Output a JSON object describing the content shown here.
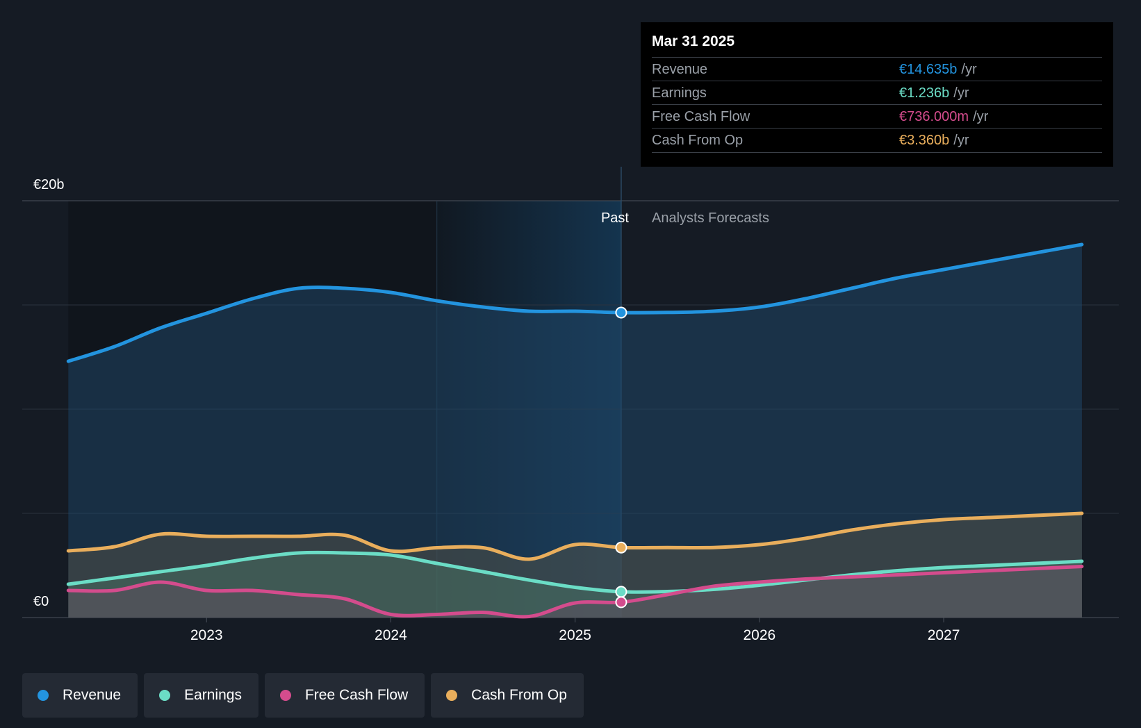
{
  "chart_data": {
    "type": "area",
    "y_unit_labels": {
      "top": "€20b",
      "bottom": "€0"
    },
    "ylim": [
      0,
      20
    ],
    "x_ticks": [
      "2023",
      "2024",
      "2025",
      "2026",
      "2027"
    ],
    "section_labels": {
      "past": "Past",
      "forecast": "Analysts Forecasts"
    },
    "divider_x": 2025.25,
    "past_start_x": 2022.25,
    "series": [
      {
        "name": "Revenue",
        "color": "#2394df",
        "x": [
          2022.25,
          2022.5,
          2022.75,
          2023,
          2023.25,
          2023.5,
          2023.75,
          2024,
          2024.25,
          2024.5,
          2024.75,
          2025,
          2025.25,
          2025.5,
          2025.75,
          2026,
          2026.25,
          2026.5,
          2026.75,
          2027,
          2027.25,
          2027.5,
          2027.75
        ],
        "y": [
          12.3,
          13.0,
          13.9,
          14.6,
          15.3,
          15.8,
          15.8,
          15.6,
          15.2,
          14.9,
          14.7,
          14.7,
          14.635,
          14.64,
          14.7,
          14.9,
          15.3,
          15.8,
          16.3,
          16.7,
          17.1,
          17.5,
          17.9
        ]
      },
      {
        "name": "Cash From Op",
        "color": "#e9ae5c",
        "x": [
          2022.25,
          2022.5,
          2022.75,
          2023,
          2023.25,
          2023.5,
          2023.75,
          2024,
          2024.25,
          2024.5,
          2024.75,
          2025,
          2025.25,
          2025.5,
          2025.75,
          2026,
          2026.25,
          2026.5,
          2026.75,
          2027,
          2027.25,
          2027.5,
          2027.75
        ],
        "y": [
          3.2,
          3.4,
          4.0,
          3.9,
          3.9,
          3.9,
          3.95,
          3.2,
          3.35,
          3.35,
          2.8,
          3.5,
          3.36,
          3.36,
          3.36,
          3.5,
          3.8,
          4.2,
          4.5,
          4.7,
          4.8,
          4.9,
          5.0
        ]
      },
      {
        "name": "Earnings",
        "color": "#6bddc6",
        "x": [
          2022.25,
          2022.5,
          2022.75,
          2023,
          2023.25,
          2023.5,
          2023.75,
          2024,
          2024.25,
          2024.5,
          2024.75,
          2025,
          2025.25,
          2025.5,
          2025.75,
          2026,
          2026.25,
          2026.5,
          2026.75,
          2027,
          2027.25,
          2027.5,
          2027.75
        ],
        "y": [
          1.6,
          1.9,
          2.2,
          2.5,
          2.85,
          3.1,
          3.1,
          3.0,
          2.6,
          2.2,
          1.8,
          1.45,
          1.236,
          1.25,
          1.35,
          1.55,
          1.8,
          2.05,
          2.25,
          2.4,
          2.5,
          2.6,
          2.7
        ]
      },
      {
        "name": "Free Cash Flow",
        "color": "#d44c8d",
        "x": [
          2022.25,
          2022.5,
          2022.75,
          2023,
          2023.25,
          2023.5,
          2023.75,
          2024,
          2024.25,
          2024.5,
          2024.75,
          2025,
          2025.25,
          2025.5,
          2025.75,
          2026,
          2026.25,
          2026.5,
          2026.75,
          2027,
          2027.25,
          2027.5,
          2027.75
        ],
        "y": [
          1.3,
          1.3,
          1.7,
          1.3,
          1.3,
          1.1,
          0.9,
          0.15,
          0.15,
          0.25,
          0.05,
          0.7,
          0.736,
          1.1,
          1.5,
          1.7,
          1.85,
          1.95,
          2.05,
          2.15,
          2.25,
          2.35,
          2.45
        ]
      }
    ]
  },
  "tooltip": {
    "date": "Mar 31 2025",
    "unit": "/yr",
    "rows": [
      {
        "label": "Revenue",
        "value": "€14.635b",
        "color": "#2394df"
      },
      {
        "label": "Earnings",
        "value": "€1.236b",
        "color": "#6bddc6"
      },
      {
        "label": "Free Cash Flow",
        "value": "€736.000m",
        "color": "#d44c8d"
      },
      {
        "label": "Cash From Op",
        "value": "€3.360b",
        "color": "#e9ae5c"
      }
    ]
  },
  "legend": [
    {
      "label": "Revenue",
      "color": "#2394df"
    },
    {
      "label": "Earnings",
      "color": "#6bddc6"
    },
    {
      "label": "Free Cash Flow",
      "color": "#d44c8d"
    },
    {
      "label": "Cash From Op",
      "color": "#e9ae5c"
    }
  ]
}
